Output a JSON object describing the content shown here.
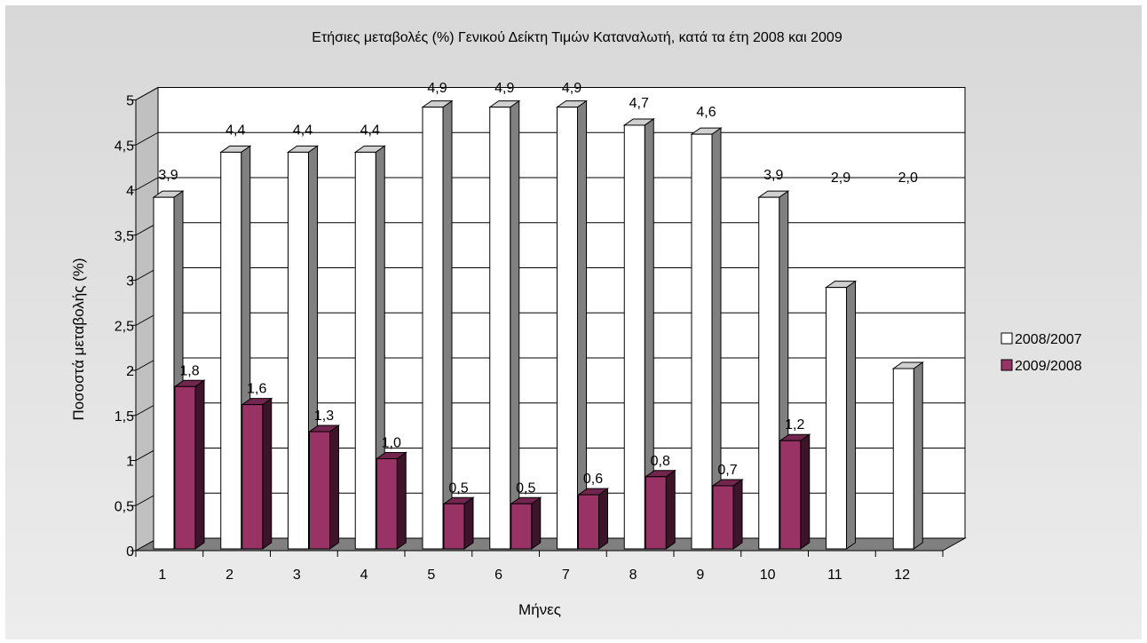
{
  "chart_data": {
    "type": "bar",
    "title": "Ετήσιες μεταβολές (%) Γενικού Δείκτη Τιμών Καταναλωτή, κατά τα έτη 2008 και 2009",
    "xlabel": "Μήνες",
    "ylabel": "Ποσοστά μεταβολής (%)",
    "categories": [
      "1",
      "2",
      "3",
      "4",
      "5",
      "6",
      "7",
      "8",
      "9",
      "10",
      "11",
      "12"
    ],
    "ylim": [
      0,
      5
    ],
    "yticks": [
      "0",
      "0,5",
      "1",
      "1,5",
      "2",
      "2,5",
      "3",
      "3,5",
      "4",
      "4,5",
      "5"
    ],
    "grid": true,
    "legend_position": "right",
    "series": [
      {
        "name": "2008/2007",
        "color": "#ffffff",
        "values": [
          3.9,
          4.4,
          4.4,
          4.4,
          4.9,
          4.9,
          4.9,
          4.7,
          4.6,
          3.9,
          2.9,
          2.0
        ],
        "labels": [
          "3,9",
          "4,4",
          "4,4",
          "4,4",
          "4,9",
          "4,9",
          "4,9",
          "4,7",
          "4,6",
          "3,9",
          "2,9",
          "2,0"
        ]
      },
      {
        "name": "2009/2008",
        "color": "#993366",
        "values": [
          1.8,
          1.6,
          1.3,
          1.0,
          0.5,
          0.5,
          0.6,
          0.8,
          0.7,
          1.2,
          null,
          null
        ],
        "labels": [
          "1,8",
          "1,6",
          "1,3",
          "1,0",
          "0,5",
          "0,5",
          "0,6",
          "0,8",
          "0,7",
          "1,2",
          "",
          ""
        ]
      }
    ]
  }
}
